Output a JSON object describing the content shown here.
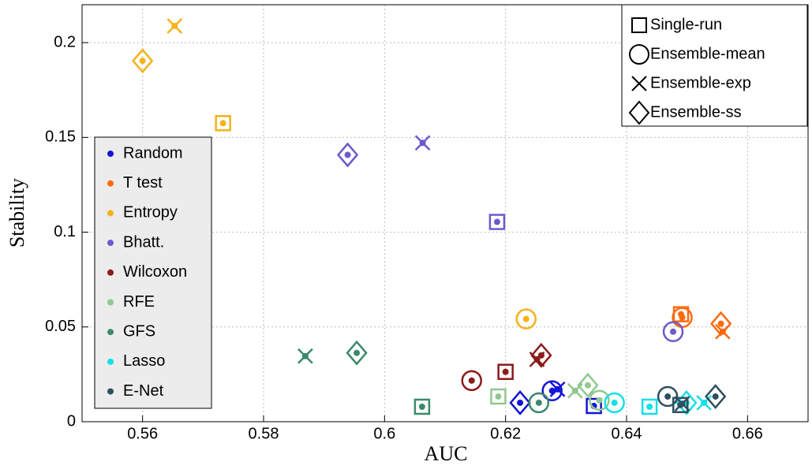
{
  "chart_data": {
    "type": "scatter",
    "x_label": "AUC",
    "y_label": "Stability",
    "xlim": [
      0.55,
      0.67
    ],
    "ylim": [
      0,
      0.22
    ],
    "xticks": [
      0.56,
      0.58,
      0.6,
      0.62,
      0.64,
      0.66
    ],
    "yticks": [
      0,
      0.05,
      0.1,
      0.15,
      0.2
    ],
    "grid": true,
    "markers": [
      "Single-run",
      "Ensemble-mean",
      "Ensemble-exp",
      "Ensemble-ss"
    ],
    "series": [
      {
        "name": "Random",
        "color": "#1414d8",
        "x": [
          0.6346,
          0.6277,
          0.6286,
          0.6224
        ],
        "values": [
          0.0083,
          0.0163,
          0.0171,
          0.01
        ]
      },
      {
        "name": "T test",
        "color": "#ff6a10",
        "x": [
          0.649,
          0.6492,
          0.6559,
          0.6556
        ],
        "values": [
          0.0567,
          0.055,
          0.0475,
          0.0517
        ]
      },
      {
        "name": "Entropy",
        "color": "#f5b21a",
        "x": [
          0.5733,
          0.6234,
          0.5653,
          0.56
        ],
        "values": [
          0.1575,
          0.0542,
          0.2088,
          0.1904
        ]
      },
      {
        "name": "Bhatt.",
        "color": "#6a5acd",
        "x": [
          0.6186,
          0.6477,
          0.6063,
          0.5939
        ],
        "values": [
          0.1054,
          0.0475,
          0.1471,
          0.1408
        ]
      },
      {
        "name": "Wilcoxon",
        "color": "#8b1a1a",
        "x": [
          0.62,
          0.6144,
          0.6252,
          0.6259
        ],
        "values": [
          0.0263,
          0.0217,
          0.0329,
          0.035
        ]
      },
      {
        "name": "RFE",
        "color": "#90c890",
        "x": [
          0.6188,
          0.6355,
          0.6315,
          0.6336
        ],
        "values": [
          0.0133,
          0.0113,
          0.0163,
          0.0192
        ]
      },
      {
        "name": "GFS",
        "color": "#3a8a6a",
        "x": [
          0.6062,
          0.6255,
          0.5869,
          0.5954
        ],
        "values": [
          0.0079,
          0.01,
          0.0346,
          0.0363
        ]
      },
      {
        "name": "Lasso",
        "color": "#12e0e8",
        "x": [
          0.6438,
          0.638,
          0.6528,
          0.6499
        ],
        "values": [
          0.0079,
          0.01,
          0.01,
          0.01
        ]
      },
      {
        "name": "E-Net",
        "color": "#2f4f60",
        "x": [
          0.6489,
          0.6468,
          0.6492,
          0.6547
        ],
        "values": [
          0.0088,
          0.0133,
          0.0095,
          0.0133
        ]
      }
    ]
  }
}
